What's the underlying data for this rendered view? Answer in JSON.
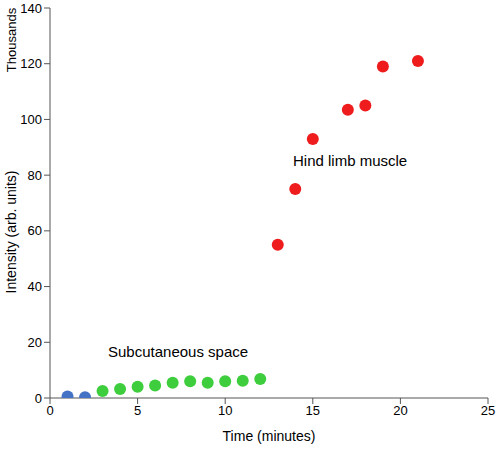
{
  "chart_data": {
    "type": "scatter",
    "x_label": "Time (minutes)",
    "y_label": "Intensity (arb. units)",
    "annotations": [
      "Thousands"
    ],
    "x": [
      1,
      2,
      3,
      4,
      5,
      6,
      7,
      8,
      9,
      10,
      11,
      12,
      13,
      14,
      15,
      17,
      18,
      19,
      21
    ],
    "series": [
      {
        "color": "#4472c4",
        "values": [
          0.5,
          0.3,
          null,
          null,
          null,
          null,
          null,
          null,
          null,
          null,
          null,
          null,
          null,
          null,
          null,
          null,
          null,
          null,
          null
        ]
      },
      {
        "name": "Subcutaneous space",
        "color": "#3dcd3d",
        "values": [
          null,
          null,
          2.5,
          3.2,
          4,
          4.5,
          5.5,
          6,
          5.5,
          6,
          6.2,
          6.8,
          null,
          null,
          null,
          null,
          null,
          null,
          null
        ]
      },
      {
        "name": "Hind limb muscle",
        "color": "#ee1c1c",
        "values": [
          null,
          null,
          null,
          null,
          null,
          null,
          null,
          null,
          null,
          null,
          null,
          null,
          55,
          75,
          93,
          103.5,
          105,
          119,
          121
        ]
      }
    ],
    "xlim": [
      0,
      25
    ],
    "xticks": [
      0,
      5,
      10,
      15,
      20,
      25
    ],
    "ylim": [
      0,
      140
    ],
    "yticks": [
      0,
      20,
      40,
      60,
      80,
      100,
      120,
      140
    ],
    "grid": false,
    "marker": "circle"
  }
}
